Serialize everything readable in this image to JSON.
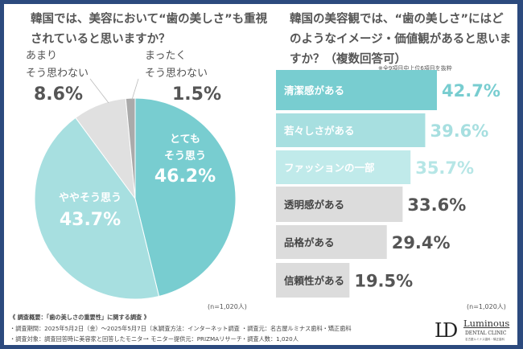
{
  "colors": {
    "frame": "#2c4a7e",
    "teal1": "#78cdd0",
    "teal2": "#a7dfe0",
    "teal3": "#c0eaea",
    "gray1": "#e0e0e0",
    "gray2": "#aaaaaa"
  },
  "chart_data": [
    {
      "type": "pie",
      "title": "韓国では、美容において“歯の美しさ”も重視されていると思いますか？",
      "note": "(n=1,020人)",
      "slices": [
        {
          "label_lines": [
            "とても",
            "そう思う"
          ],
          "value": 46.2,
          "display": "46.2%",
          "color": "#78cdd0"
        },
        {
          "label_lines": [
            "ややそう思う"
          ],
          "value": 43.7,
          "display": "43.7%",
          "color": "#a7dfe0"
        },
        {
          "label_lines": [
            "あまり",
            "そう思わない"
          ],
          "value": 8.6,
          "display": "8.6%",
          "color": "#e0e0e0"
        },
        {
          "label_lines": [
            "まったく",
            "そう思わない"
          ],
          "value": 1.5,
          "display": "1.5%",
          "color": "#aaaaaa"
        }
      ]
    },
    {
      "type": "bar",
      "orientation": "horizontal",
      "title": "韓国の美容観では、“歯の美しさ”にはどのようなイメージ・価値観があると思いますか？（複数回答可）",
      "subnote": "※全9項目中上位6項目を抜粋",
      "note": "(n=1,020人)",
      "categories": [
        "清潔感がある",
        "若々しさがある",
        "ファッションの一部",
        "透明感がある",
        "品格がある",
        "信頼性がある"
      ],
      "values": [
        42.7,
        39.6,
        35.7,
        33.6,
        29.4,
        19.5
      ],
      "display": [
        "42.7%",
        "39.6%",
        "35.7%",
        "33.6%",
        "29.4%",
        "19.5%"
      ],
      "colors": [
        "#78cdd0",
        "#a7dfe0",
        "#c0eaea",
        "#dcdcdc",
        "#dcdcdc",
        "#dcdcdc"
      ]
    }
  ],
  "footer": {
    "heading": "《 調査概要：「歯の美しさの重要性」に関する調査 》",
    "period": "・調査期間：2025年5月2日（金）～2025年5月7日（水）",
    "method": "・調査方法：インターネット調査",
    "source": "・調査元：名古屋ルミナス歯科・矯正歯科",
    "target": "・調査対象：調査回答時に美容家と回答したモニター",
    "provider": "・モニター提供元：PRIZMAリサーチ",
    "count": "・調査人数：1,020人"
  },
  "logo": {
    "mark": "LD",
    "name": "Luminous",
    "sub": "DENTAL CLINIC",
    "jp": "名古屋ルミナス歯科・矯正歯科"
  }
}
